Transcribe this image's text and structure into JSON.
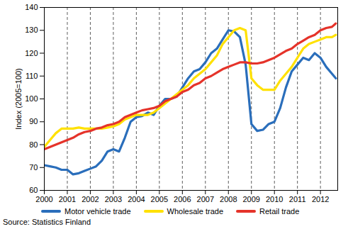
{
  "chart_data": {
    "type": "line",
    "y_label": "Index (2005=100)",
    "source": "Source: Statistics Finland",
    "x": [
      2000,
      2000.25,
      2000.5,
      2000.75,
      2001,
      2001.25,
      2001.5,
      2001.75,
      2002,
      2002.25,
      2002.5,
      2002.75,
      2003,
      2003.25,
      2003.5,
      2003.75,
      2004,
      2004.25,
      2004.5,
      2004.75,
      2005,
      2005.25,
      2005.5,
      2005.75,
      2006,
      2006.25,
      2006.5,
      2006.75,
      2007,
      2007.25,
      2007.5,
      2007.75,
      2008,
      2008.25,
      2008.5,
      2008.75,
      2009,
      2009.25,
      2009.5,
      2009.75,
      2010,
      2010.25,
      2010.5,
      2010.75,
      2011,
      2011.25,
      2011.5,
      2011.75,
      2012,
      2012.25,
      2012.5,
      2012.67
    ],
    "series": [
      {
        "name": "Motor vehicle trade",
        "color": "#2a6ebb",
        "values": [
          71,
          70.5,
          70,
          69,
          69,
          67,
          67.5,
          68.5,
          69.5,
          70.5,
          73,
          77,
          78,
          77,
          83,
          90,
          92,
          92.5,
          94,
          93,
          97,
          100,
          100,
          101,
          105,
          109,
          112,
          113,
          116,
          120,
          122,
          126,
          130,
          129.5,
          127,
          115,
          89,
          86,
          86.5,
          89,
          90,
          96,
          105,
          112,
          115,
          118,
          117,
          120,
          118,
          114,
          111,
          109
        ]
      },
      {
        "name": "Wholesale trade",
        "color": "#ffe100",
        "values": [
          79,
          82,
          85,
          87,
          87,
          87,
          87.5,
          87,
          87,
          87,
          87,
          87.5,
          88,
          89,
          91,
          92,
          93,
          93,
          93,
          94,
          96,
          98,
          100,
          102,
          104,
          106,
          109,
          111,
          113,
          116,
          119,
          124,
          127,
          130,
          131,
          130,
          109,
          106,
          104,
          104,
          104,
          108,
          111,
          114,
          118,
          122,
          124,
          125,
          126,
          127,
          127,
          128
        ]
      },
      {
        "name": "Retail trade",
        "color": "#e5332a",
        "values": [
          78,
          79,
          80,
          81,
          82,
          83,
          84.5,
          85.5,
          86,
          87,
          87.5,
          88.5,
          89,
          90,
          92,
          93,
          94,
          95,
          95.5,
          96,
          97,
          99,
          100,
          101,
          103,
          104,
          106,
          107,
          109,
          110,
          111.5,
          113,
          114,
          115,
          116,
          116,
          115.5,
          115.5,
          116,
          117,
          118,
          119.5,
          121,
          122,
          124,
          125.5,
          127,
          128,
          130,
          131,
          131.5,
          133
        ]
      }
    ],
    "xlim": [
      2000,
      2012.75
    ],
    "xticks": [
      2000,
      2001,
      2002,
      2003,
      2004,
      2005,
      2006,
      2007,
      2008,
      2009,
      2010,
      2011,
      2012
    ],
    "ylim": [
      60,
      140
    ],
    "yticks": [
      60,
      70,
      80,
      90,
      100,
      110,
      120,
      130,
      140
    ],
    "grid": "x",
    "legend": "bottom"
  }
}
